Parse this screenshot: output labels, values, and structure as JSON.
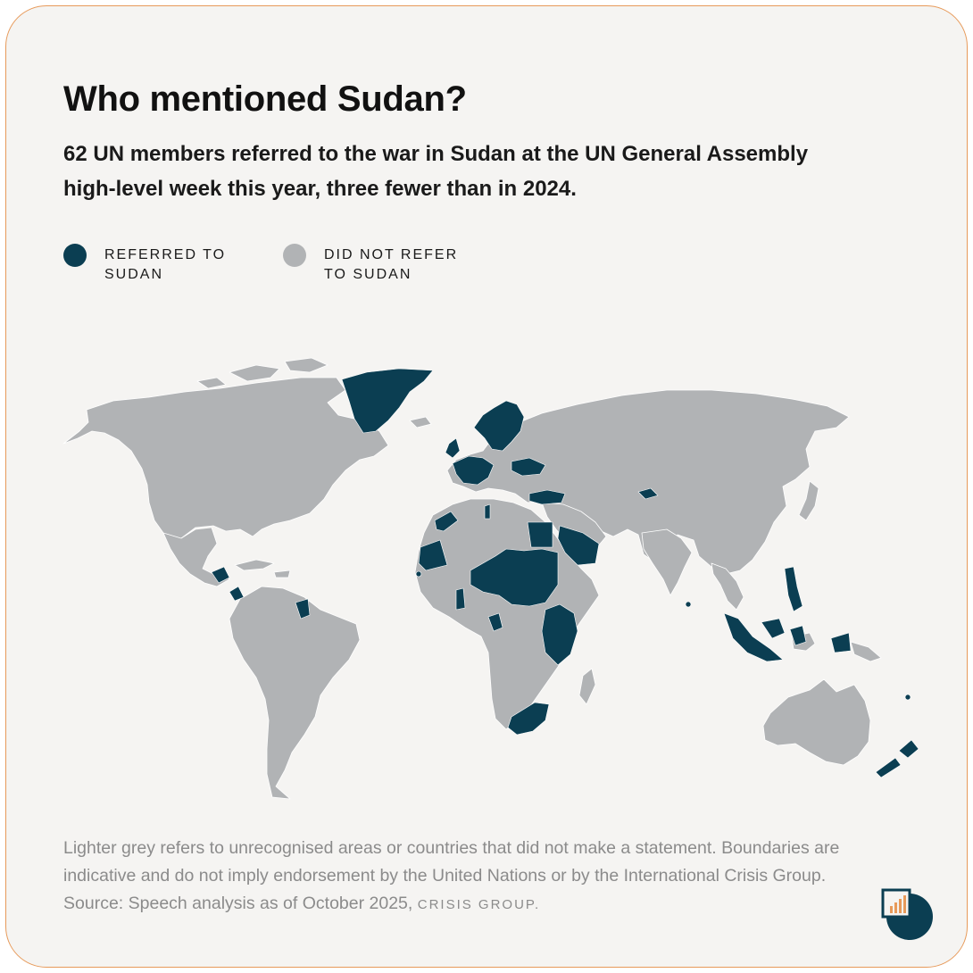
{
  "title": "Who mentioned Sudan?",
  "subtitle": "62 UN members referred to the war in Sudan at the UN General Assembly high-level week this year, three fewer than in 2024.",
  "legend": [
    {
      "label": "Referred to Sudan",
      "color": "#0b3e52"
    },
    {
      "label": "Did not refer to Sudan",
      "color": "#b1b3b5"
    }
  ],
  "footnote": {
    "text": "Lighter grey refers to unrecognised areas or countries that did not make a statement. Boundaries are indicative and do not imply endorsement by the United Nations or by the International Crisis Group. Source: Speech analysis as of October 2025,",
    "brand": "Crisis Group."
  },
  "colors": {
    "referred": "#0b3e52",
    "not_referred": "#b1b3b5",
    "background": "#f5f4f2",
    "border": "#e79a5a"
  },
  "logo": {
    "icon": "crisis-group-logo"
  }
}
